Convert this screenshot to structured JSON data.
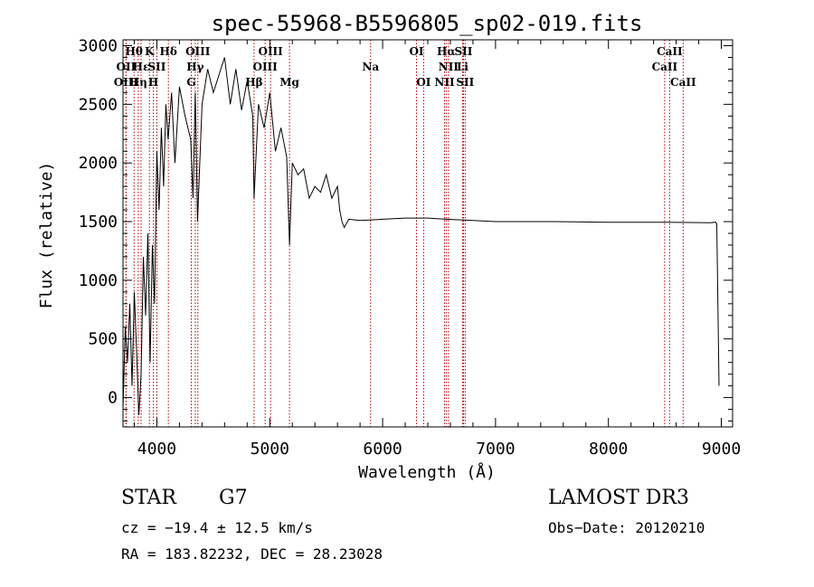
{
  "chart_data": {
    "type": "line",
    "title": "spec-55968-B5596805_sp02-019.fits",
    "xlabel": "Wavelength (Å)",
    "ylabel": "Flux (relative)",
    "xlim": [
      3700,
      9100
    ],
    "ylim": [
      -250,
      3050
    ],
    "xticks": [
      4000,
      5000,
      6000,
      7000,
      8000,
      9000
    ],
    "yticks": [
      0,
      500,
      1000,
      1500,
      2000,
      2500,
      3000
    ],
    "grid": false,
    "series": [
      {
        "name": "flux",
        "x": [
          3700,
          3720,
          3740,
          3760,
          3780,
          3800,
          3820,
          3840,
          3860,
          3880,
          3900,
          3920,
          3940,
          3960,
          3980,
          4000,
          4020,
          4040,
          4060,
          4080,
          4100,
          4130,
          4160,
          4200,
          4250,
          4300,
          4320,
          4340,
          4360,
          4400,
          4450,
          4500,
          4550,
          4600,
          4650,
          4700,
          4750,
          4800,
          4850,
          4861,
          4900,
          4950,
          5000,
          5050,
          5100,
          5150,
          5175,
          5200,
          5250,
          5300,
          5350,
          5400,
          5450,
          5500,
          5550,
          5600,
          5620,
          5640,
          5660,
          5700,
          5800,
          5900,
          6000,
          6200,
          6400,
          6563,
          6800,
          7000,
          7500,
          8000,
          8500,
          8900,
          8950,
          8960,
          8980
        ],
        "values": [
          -100,
          600,
          300,
          800,
          100,
          900,
          400,
          -150,
          200,
          1200,
          700,
          1400,
          300,
          1300,
          800,
          2100,
          1600,
          2300,
          1800,
          2500,
          2200,
          2600,
          2000,
          2650,
          2400,
          2200,
          1700,
          2600,
          1500,
          2500,
          2800,
          2600,
          2750,
          2900,
          2500,
          2800,
          2450,
          2700,
          2400,
          1700,
          2500,
          2300,
          2600,
          2100,
          2300,
          2050,
          1300,
          2000,
          1900,
          1950,
          1700,
          1800,
          1750,
          1900,
          1700,
          1800,
          1600,
          1500,
          1450,
          1520,
          1510,
          1515,
          1520,
          1530,
          1530,
          1520,
          1510,
          1500,
          1500,
          1495,
          1495,
          1490,
          1495,
          1480,
          100
        ]
      }
    ],
    "spectral_lines": [
      {
        "label": "Hθ",
        "x": 3798,
        "row": 1
      },
      {
        "label": "OII",
        "x": 3727,
        "row": 2
      },
      {
        "label": "OIII",
        "x": 3727,
        "row": 3
      },
      {
        "label": "K",
        "x": 3934,
        "row": 1
      },
      {
        "label": "Hε",
        "x": 3860,
        "row": 2
      },
      {
        "label": "Hη",
        "x": 3835,
        "row": 3
      },
      {
        "label": "SII",
        "x": 4000,
        "row": 2
      },
      {
        "label": "H",
        "x": 3969,
        "row": 3
      },
      {
        "label": "Hδ",
        "x": 4102,
        "row": 1
      },
      {
        "label": "OIII",
        "x": 4363,
        "row": 1
      },
      {
        "label": "Hγ",
        "x": 4340,
        "row": 2
      },
      {
        "label": "G",
        "x": 4305,
        "row": 3
      },
      {
        "label": "OIII",
        "x": 5007,
        "row": 1
      },
      {
        "label": "OIII",
        "x": 4959,
        "row": 2
      },
      {
        "label": "Hβ",
        "x": 4861,
        "row": 3
      },
      {
        "label": "Mg",
        "x": 5175,
        "row": 3
      },
      {
        "label": "Na",
        "x": 5893,
        "row": 2
      },
      {
        "label": "OI",
        "x": 6300,
        "row": 1
      },
      {
        "label": "OI",
        "x": 6363,
        "row": 3
      },
      {
        "label": "Hα",
        "x": 6563,
        "row": 1
      },
      {
        "label": "SII",
        "x": 6716,
        "row": 1
      },
      {
        "label": "NII",
        "x": 6583,
        "row": 2
      },
      {
        "label": "Li",
        "x": 6708,
        "row": 2
      },
      {
        "label": "NII",
        "x": 6548,
        "row": 3
      },
      {
        "label": "SII",
        "x": 6731,
        "row": 3
      },
      {
        "label": "CaII",
        "x": 8542,
        "row": 1
      },
      {
        "label": "CaII",
        "x": 8498,
        "row": 2
      },
      {
        "label": "CaII",
        "x": 8662,
        "row": 3
      }
    ]
  },
  "info": {
    "object_class": "STAR",
    "subclass": "G7",
    "survey": "LAMOST DR3",
    "redshift": "cz = −19.4 ± 12.5 km/s",
    "obs_date": "Obs−Date: 20120210",
    "coords": "RA = 183.82232, DEC =  28.23028"
  },
  "colors": {
    "line": "#000000",
    "marker_line": "#b30000"
  }
}
